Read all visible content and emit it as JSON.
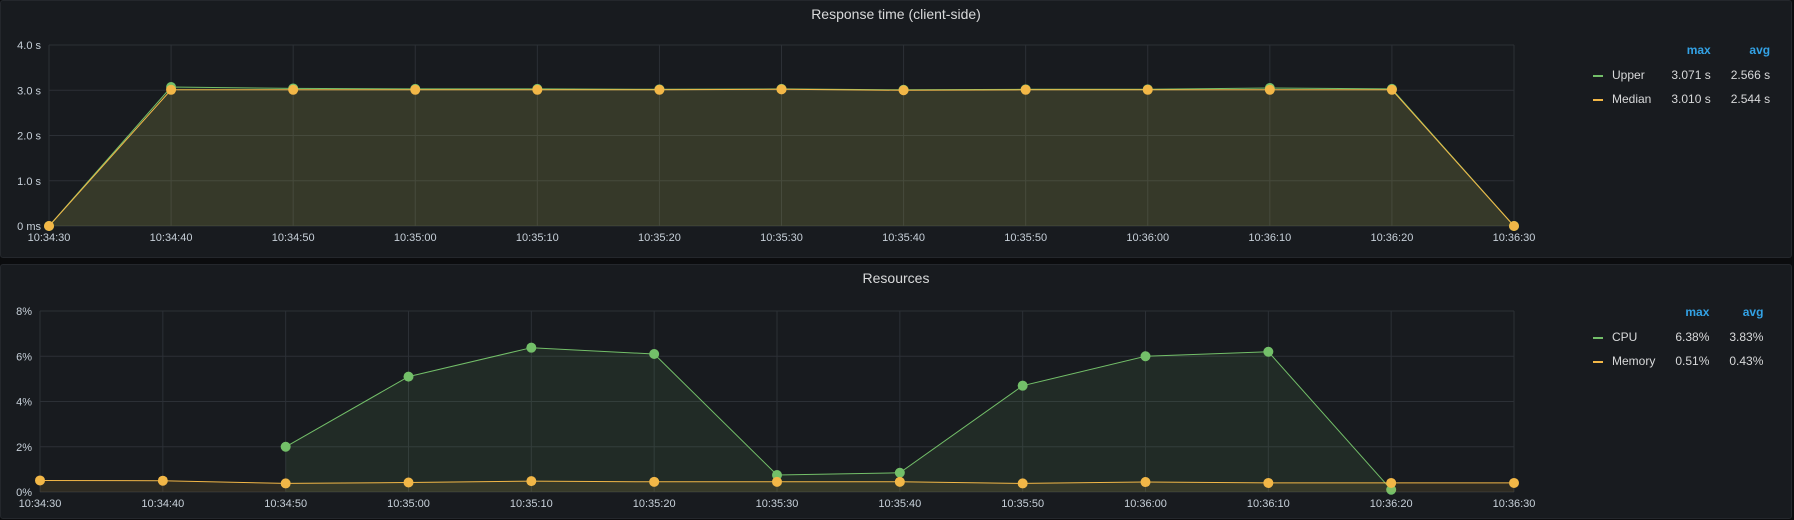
{
  "chart_data": [
    {
      "type": "line",
      "title": "Response time (client-side)",
      "x": [
        "10:34:30",
        "10:34:40",
        "10:34:50",
        "10:35:00",
        "10:35:10",
        "10:35:20",
        "10:35:30",
        "10:35:40",
        "10:35:50",
        "10:36:00",
        "10:36:10",
        "10:36:20",
        "10:36:30"
      ],
      "y_ticks": [
        "0 ms",
        "1.0 s",
        "2.0 s",
        "3.0 s",
        "4.0 s"
      ],
      "ylim": [
        0,
        4
      ],
      "unit": "s",
      "series": [
        {
          "name": "Upper",
          "color": "#73bf69",
          "values": [
            0,
            3.071,
            3.04,
            3.03,
            3.03,
            3.02,
            3.03,
            3.01,
            3.02,
            3.02,
            3.05,
            3.03,
            0
          ]
        },
        {
          "name": "Median",
          "color": "#f2b747",
          "values": [
            0,
            3.01,
            3.01,
            3.01,
            3.01,
            3.01,
            3.02,
            3.0,
            3.01,
            3.01,
            3.01,
            3.01,
            0
          ]
        }
      ],
      "legend": {
        "headers": [
          "max",
          "avg"
        ],
        "rows": [
          {
            "name": "Upper",
            "max": "3.071 s",
            "avg": "2.566 s"
          },
          {
            "name": "Median",
            "max": "3.010 s",
            "avg": "2.544 s"
          }
        ]
      }
    },
    {
      "type": "line",
      "title": "Resources",
      "x": [
        "10:34:30",
        "10:34:40",
        "10:34:50",
        "10:35:00",
        "10:35:10",
        "10:35:20",
        "10:35:30",
        "10:35:40",
        "10:35:50",
        "10:36:00",
        "10:36:10",
        "10:36:20",
        "10:36:30"
      ],
      "y_ticks": [
        "0%",
        "2%",
        "4%",
        "6%",
        "8%"
      ],
      "ylim": [
        0,
        8
      ],
      "unit": "%",
      "series": [
        {
          "name": "CPU",
          "color": "#73bf69",
          "values": [
            null,
            null,
            2.0,
            5.1,
            6.38,
            6.1,
            0.75,
            0.85,
            4.7,
            6.0,
            6.2,
            0.1,
            null
          ]
        },
        {
          "name": "Memory",
          "color": "#f2b747",
          "values": [
            0.51,
            0.5,
            0.38,
            0.42,
            0.48,
            0.45,
            0.45,
            0.45,
            0.38,
            0.44,
            0.4,
            0.4,
            0.4
          ]
        }
      ],
      "legend": {
        "headers": [
          "max",
          "avg"
        ],
        "rows": [
          {
            "name": "CPU",
            "max": "6.38%",
            "avg": "3.83%"
          },
          {
            "name": "Memory",
            "max": "0.51%",
            "avg": "0.43%"
          }
        ]
      }
    }
  ]
}
